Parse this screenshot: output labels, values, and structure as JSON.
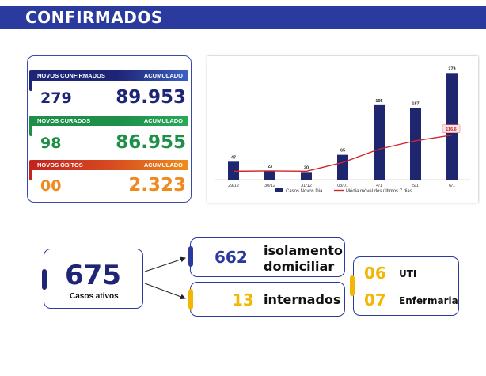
{
  "header": {
    "title": "CONFIRMADOS"
  },
  "stats": {
    "confirmed": {
      "label": "NOVOS CONFIRMADOS",
      "acc_label": "ACUMULADO",
      "new": "279",
      "total": "89.953"
    },
    "recovered": {
      "label": "NOVOS CURADOS",
      "acc_label": "ACUMULADO",
      "new": "98",
      "total": "86.955"
    },
    "deaths": {
      "label": "NOVOS ÓBITOS",
      "acc_label": "ACUMULADO",
      "new": "00",
      "total": "2.323"
    }
  },
  "chart_data": {
    "type": "bar",
    "categories": [
      "29/12",
      "30/12",
      "31/12",
      "03/01",
      "4/1",
      "5/1",
      "6/1"
    ],
    "series": [
      {
        "name": "Casos Novos Dia",
        "values": [
          47,
          23,
          20,
          65,
          195,
          187,
          279
        ]
      },
      {
        "name": "Média móvel dos últimos 7 dias",
        "type": "line",
        "values": [
          22,
          23,
          22,
          45,
          80,
          102,
          116.6
        ]
      }
    ],
    "highlight_label": "116,6",
    "ylim": [
      0,
      290
    ],
    "legend": [
      "Casos Novos Dia",
      "Média móvel dos últimos 7 dias"
    ],
    "colors": {
      "bar": "#1f2670",
      "line": "#d0262a"
    }
  },
  "active": {
    "count": "675",
    "label": "Casos ativos"
  },
  "isolation": {
    "count": "662",
    "label_line1": "isolamento",
    "label_line2": "domiciliar"
  },
  "hospitalized": {
    "count": "13",
    "label": "internados"
  },
  "hospital_breakdown": {
    "icu": {
      "count": "06",
      "label": "UTI"
    },
    "ward": {
      "count": "07",
      "label": "Enfermaria"
    }
  },
  "colors": {
    "blue": "#2b3a9e",
    "navy": "#1f2576",
    "green": "#1d8f49",
    "orange": "#ef8a1f",
    "yellow": "#f2b705"
  }
}
